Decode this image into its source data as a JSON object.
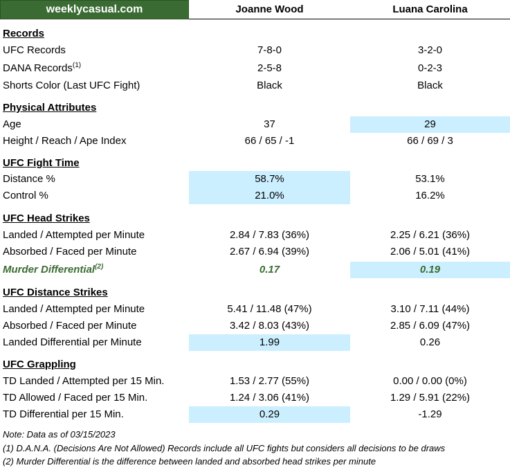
{
  "header": {
    "brand": "weeklycasual.com",
    "fighter1": "Joanne Wood",
    "fighter2": "Luana Carolina"
  },
  "sections": {
    "records": "Records",
    "physical": "Physical Attributes",
    "fight_time": "UFC Fight Time",
    "head_strikes": "UFC Head Strikes",
    "distance_strikes": "UFC Distance Strikes",
    "grappling": "UFC Grappling"
  },
  "rows": {
    "ufc_records": {
      "label": "UFC Records",
      "f1": "7-8-0",
      "f2": "3-2-0"
    },
    "dana_records": {
      "label": "DANA Records",
      "sup": "(1)",
      "f1": "2-5-8",
      "f2": "0-2-3"
    },
    "shorts": {
      "label": "Shorts Color (Last UFC Fight)",
      "f1": "Black",
      "f2": "Black"
    },
    "age": {
      "label": "Age",
      "f1": "37",
      "f2": "29"
    },
    "height": {
      "label": "Height / Reach / Ape Index",
      "f1": "66 / 65 / -1",
      "f2": "66 / 69 / 3"
    },
    "distance_pct": {
      "label": "Distance %",
      "f1": "58.7%",
      "f2": "53.1%"
    },
    "control_pct": {
      "label": "Control %",
      "f1": "21.0%",
      "f2": "16.2%"
    },
    "head_landed": {
      "label": "Landed / Attempted per Minute",
      "f1": "2.84 / 7.83 (36%)",
      "f2": "2.25 / 6.21 (36%)"
    },
    "head_absorbed": {
      "label": "Absorbed / Faced per Minute",
      "f1": "2.67 / 6.94 (39%)",
      "f2": "2.06 / 5.01 (41%)"
    },
    "murder": {
      "label": "Murder Differential",
      "sup": "(2)",
      "f1": "0.17",
      "f2": "0.19"
    },
    "dist_landed": {
      "label": "Landed / Attempted per Minute",
      "f1": "5.41 / 11.48 (47%)",
      "f2": "3.10 / 7.11 (44%)"
    },
    "dist_absorbed": {
      "label": "Absorbed / Faced per Minute",
      "f1": "3.42 / 8.03 (43%)",
      "f2": "2.85 / 6.09 (47%)"
    },
    "dist_diff": {
      "label": "Landed Differential per Minute",
      "f1": "1.99",
      "f2": "0.26"
    },
    "td_landed": {
      "label": "TD Landed / Attempted per 15 Min.",
      "f1": "1.53 / 2.77 (55%)",
      "f2": "0.00 / 0.00 (0%)"
    },
    "td_allowed": {
      "label": "TD Allowed / Faced per 15 Min.",
      "f1": "1.24 / 3.06 (41%)",
      "f2": "1.29 / 5.91 (22%)"
    },
    "td_diff": {
      "label": "TD Differential per 15 Min.",
      "f1": "0.29",
      "f2": "-1.29"
    }
  },
  "notes": {
    "date": "Note: Data as of 03/15/2023",
    "n1": "(1) D.A.N.A. (Decisions Are Not Allowed) Records include all UFC fights but considers all decisions to be draws",
    "n2": "(2) Murder Differential is the difference between landed and absorbed head strikes per minute"
  },
  "colors": {
    "brand_bg": "#3a6b32",
    "highlight": "#ccefff",
    "murder_text": "#3a6b32"
  }
}
